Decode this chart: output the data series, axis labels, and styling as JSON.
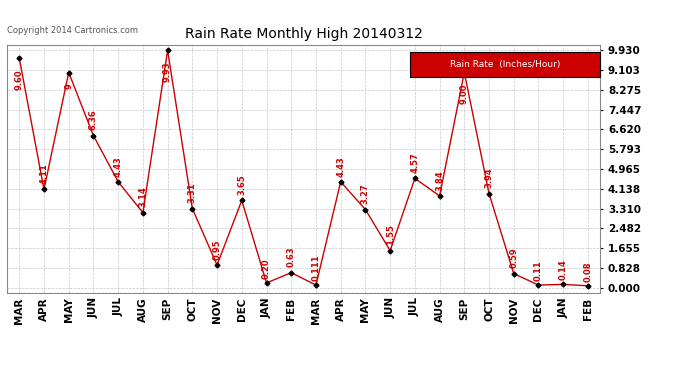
{
  "title": "Rain Rate Monthly High 20140312",
  "copyright": "Copyright 2014 Cartronics.com",
  "legend_label": "Rain Rate  (Inches/Hour)",
  "categories": [
    "MAR",
    "APR",
    "MAY",
    "JUN",
    "JUL",
    "AUG",
    "SEP",
    "OCT",
    "NOV",
    "DEC",
    "JAN",
    "FEB",
    "MAR",
    "APR",
    "MAY",
    "JUN",
    "JUL",
    "AUG",
    "SEP",
    "OCT",
    "NOV",
    "DEC",
    "JAN",
    "FEB"
  ],
  "values": [
    9.6,
    4.11,
    9.0,
    6.36,
    4.43,
    3.14,
    9.93,
    3.31,
    0.95,
    3.65,
    0.2,
    0.63,
    0.11,
    4.43,
    3.27,
    1.55,
    4.57,
    3.84,
    9.0,
    3.94,
    0.59,
    0.11,
    0.14,
    0.08
  ],
  "value_labels": [
    "9.60",
    "4.11",
    "9",
    "6.36",
    "4.43",
    "3.14",
    "9.93",
    "3.31",
    "0.95",
    "3.65",
    "0.20",
    "0.63",
    "0.111",
    "4.43",
    "3.27",
    "1.55",
    "4.57",
    "3.84",
    "9.00",
    "3.94",
    "0.59",
    "0.11",
    "0.14",
    "0.08"
  ],
  "ylim": [
    0.0,
    9.93
  ],
  "yticks": [
    0.0,
    0.828,
    1.655,
    2.482,
    3.31,
    4.138,
    4.965,
    5.793,
    6.62,
    7.447,
    8.275,
    9.103,
    9.93
  ],
  "ytick_labels": [
    "0.000",
    "0.828",
    "1.655",
    "2.482",
    "3.310",
    "4.138",
    "4.965",
    "5.793",
    "6.620",
    "7.447",
    "8.275",
    "9.103",
    "9.930"
  ],
  "line_color": "#cc0000",
  "marker_color": "#000000",
  "label_color": "#cc0000",
  "bg_color": "#ffffff",
  "grid_color": "#c8c8c8",
  "title_color": "#000000",
  "legend_bg": "#cc0000",
  "legend_text_color": "#ffffff",
  "copyright_color": "#555555"
}
